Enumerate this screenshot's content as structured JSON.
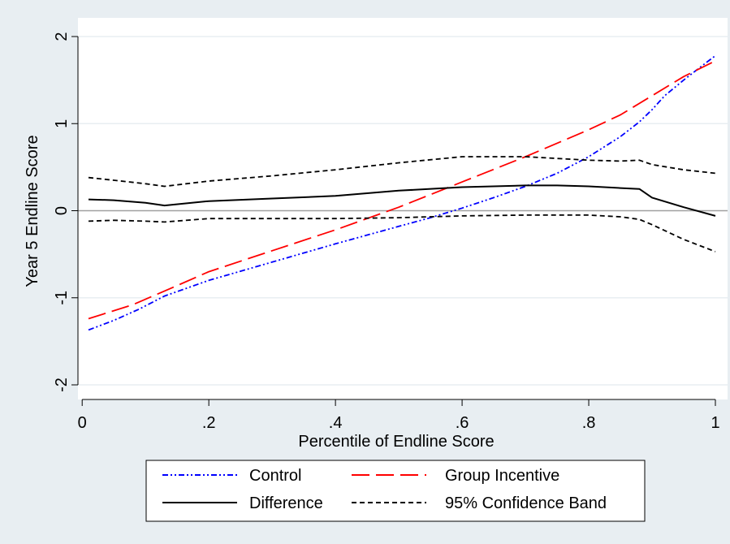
{
  "chart_data": {
    "type": "line",
    "title": "",
    "xlabel": "Percentile of Endline Score",
    "ylabel": "Year 5 Endline Score",
    "xlim": [
      0,
      1
    ],
    "ylim": [
      -2,
      2
    ],
    "xticks": [
      0,
      0.2,
      0.4,
      0.6,
      0.8,
      1
    ],
    "xtick_labels": [
      "0",
      ".2",
      ".4",
      ".6",
      ".8",
      "1"
    ],
    "yticks": [
      -2,
      -1,
      0,
      1,
      2
    ],
    "ytick_labels": [
      "-2",
      "-1",
      "0",
      "1",
      "2"
    ],
    "reference_line_y": 0,
    "grid": true,
    "legend_position": "bottom",
    "series": [
      {
        "name": "Control",
        "color": "#0000ff",
        "dash": "dash-dot-dot",
        "x": [
          0.01,
          0.05,
          0.09,
          0.13,
          0.2,
          0.3,
          0.4,
          0.5,
          0.55,
          0.6,
          0.65,
          0.7,
          0.75,
          0.8,
          0.85,
          0.88,
          0.9,
          0.92,
          0.95,
          0.98,
          1.0
        ],
        "y": [
          -1.37,
          -1.26,
          -1.13,
          -0.98,
          -0.8,
          -0.59,
          -0.38,
          -0.18,
          -0.08,
          0.03,
          0.15,
          0.28,
          0.43,
          0.62,
          0.85,
          1.02,
          1.16,
          1.32,
          1.5,
          1.67,
          1.78
        ]
      },
      {
        "name": "Group Incentive",
        "color": "#ff0000",
        "dash": "long-dash",
        "x": [
          0.01,
          0.08,
          0.15,
          0.2,
          0.3,
          0.4,
          0.5,
          0.6,
          0.7,
          0.8,
          0.85,
          0.9,
          0.95,
          1.0
        ],
        "y": [
          -1.24,
          -1.08,
          -0.86,
          -0.7,
          -0.46,
          -0.22,
          0.04,
          0.33,
          0.62,
          0.93,
          1.1,
          1.32,
          1.54,
          1.72
        ]
      },
      {
        "name": "Difference",
        "color": "#000000",
        "dash": "solid",
        "x": [
          0.01,
          0.05,
          0.1,
          0.13,
          0.2,
          0.3,
          0.4,
          0.5,
          0.6,
          0.7,
          0.75,
          0.8,
          0.85,
          0.88,
          0.9,
          0.95,
          1.0
        ],
        "y": [
          0.13,
          0.12,
          0.09,
          0.06,
          0.11,
          0.14,
          0.17,
          0.23,
          0.27,
          0.29,
          0.29,
          0.28,
          0.26,
          0.25,
          0.15,
          0.04,
          -0.06
        ]
      },
      {
        "name": "95% Confidence Band",
        "color": "#000000",
        "dash": "short-dash",
        "x": [
          0.01,
          0.05,
          0.1,
          0.13,
          0.2,
          0.3,
          0.4,
          0.5,
          0.6,
          0.65,
          0.7,
          0.8,
          0.85,
          0.88,
          0.9,
          0.95,
          1.0
        ],
        "y": [
          0.38,
          0.35,
          0.31,
          0.28,
          0.34,
          0.4,
          0.47,
          0.55,
          0.62,
          0.62,
          0.62,
          0.58,
          0.57,
          0.58,
          0.53,
          0.47,
          0.43
        ]
      },
      {
        "name": "",
        "color": "#000000",
        "dash": "short-dash",
        "x": [
          0.01,
          0.05,
          0.1,
          0.13,
          0.2,
          0.3,
          0.4,
          0.5,
          0.6,
          0.7,
          0.8,
          0.85,
          0.88,
          0.9,
          0.95,
          1.0
        ],
        "y": [
          -0.12,
          -0.11,
          -0.12,
          -0.13,
          -0.09,
          -0.09,
          -0.09,
          -0.08,
          -0.06,
          -0.05,
          -0.05,
          -0.07,
          -0.1,
          -0.16,
          -0.33,
          -0.47
        ]
      }
    ],
    "legend": {
      "entries": [
        {
          "label": "Control",
          "color": "#0000ff",
          "dash": "dash-dot-dot"
        },
        {
          "label": "Group Incentive",
          "color": "#ff0000",
          "dash": "long-dash"
        },
        {
          "label": "Difference",
          "color": "#000000",
          "dash": "solid"
        },
        {
          "label": "95% Confidence Band",
          "color": "#000000",
          "dash": "short-dash"
        }
      ]
    },
    "colors": {
      "outer_background": "#e8eef2",
      "plot_background": "#ffffff",
      "grid": "#e8eef2",
      "zero_line": "#a0a0a0"
    }
  }
}
